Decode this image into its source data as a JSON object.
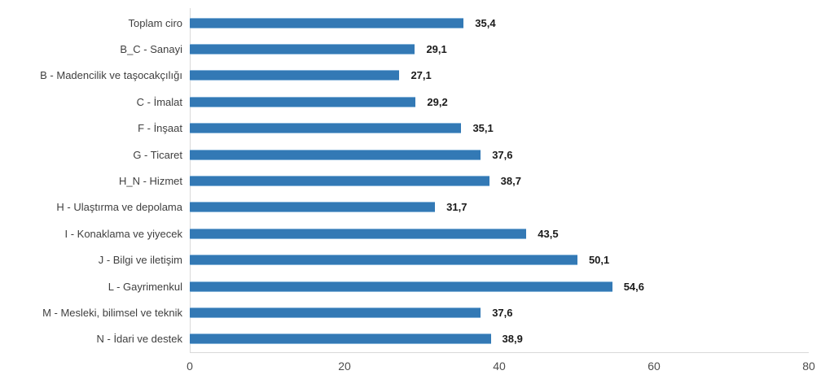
{
  "chart_data": {
    "type": "bar",
    "orientation": "horizontal",
    "title": "",
    "xlabel": "",
    "ylabel": "",
    "xlim": [
      0,
      80
    ],
    "x_ticks": [
      "0",
      "20",
      "40",
      "60",
      "80"
    ],
    "x_tick_values": [
      0,
      20,
      40,
      60,
      80
    ],
    "grid": false,
    "legend": false,
    "bar_color": "#3379b5",
    "bar_edge_color": "#85b3d9",
    "categories": [
      "Toplam ciro",
      "B_C - Sanayi",
      "B - Madencilik ve taşocakçılığı",
      "C - İmalat",
      "F - İnşaat",
      "G - Ticaret",
      "H_N - Hizmet",
      "H - Ulaştırma ve depolama",
      "I - Konaklama ve yiyecek",
      "J - Bilgi ve iletişim",
      "L - Gayrimenkul",
      "M - Mesleki, bilimsel ve teknik",
      "N - İdari ve destek"
    ],
    "values": [
      35.4,
      29.1,
      27.1,
      29.2,
      35.1,
      37.6,
      38.7,
      31.7,
      43.5,
      50.1,
      54.6,
      37.6,
      38.9
    ],
    "value_labels": [
      "35,4",
      "29,1",
      "27,1",
      "29,2",
      "35,1",
      "37,6",
      "38,7",
      "31,7",
      "43,5",
      "50,1",
      "54,6",
      "37,6",
      "38,9"
    ]
  }
}
